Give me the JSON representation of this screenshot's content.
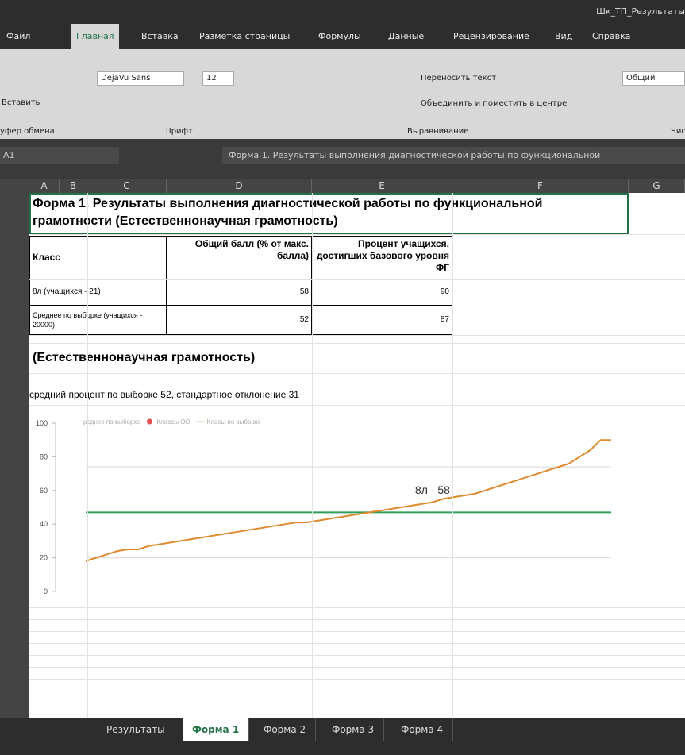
{
  "window": {
    "title": "Шк_ТП_Результаты"
  },
  "tabs": [
    "Файл",
    "Главная",
    "Вставка",
    "Разметка страницы",
    "Формулы",
    "Данные",
    "Рецензирование",
    "Вид",
    "Справка"
  ],
  "ribbon": {
    "paste": "Вставить",
    "font_name": "DejaVu Sans",
    "font_size": "12",
    "wrap_text": "Переносить текст",
    "merge": "Объединить и поместить в центре",
    "number_format": "Общий",
    "groups": [
      "уфер обмена",
      "Шрифт",
      "Выравнивание",
      "Числ"
    ]
  },
  "formula_bar": {
    "cell": "A1",
    "formula": "Форма 1. Результаты выполнения диагностической работы по функциональной"
  },
  "columns": [
    "A",
    "B",
    "C",
    "D",
    "E",
    "F",
    "G"
  ],
  "sheet": {
    "title": "Форма 1. Результаты выполнения диагностической работы по функциональной грамотности (Естественнонаучная грамотность)",
    "table": {
      "header": [
        "Класс",
        "Общий балл (% от макс. балла)",
        "Процент учащихся, достигших базового уровня ФГ"
      ],
      "rows": [
        [
          "8л (учащихся - 21)",
          58,
          90
        ],
        [
          "Среднее по выборке (учащихся - 20000)",
          52,
          87
        ]
      ]
    },
    "section": "(Естественнонаучная грамотность)",
    "stats": "средний процент по выборке 52, стандартное отклонение 31"
  },
  "chart_data": {
    "type": "line",
    "ylim": [
      0,
      100
    ],
    "yticks": [
      0,
      20,
      40,
      60,
      80,
      100
    ],
    "legend": [
      {
        "name": "реднее по выборке",
        "color": "#d0d0d0"
      },
      {
        "name": "Классы ОО",
        "color": "#e05050"
      },
      {
        "name": "Класы по выборке",
        "color": "#f0dcc0"
      }
    ],
    "series": [
      {
        "name": "Класы по выборке",
        "color": "#e08a2e",
        "values": [
          18,
          20,
          22,
          24,
          25,
          25,
          27,
          28,
          29,
          30,
          31,
          32,
          33,
          34,
          35,
          36,
          37,
          38,
          39,
          40,
          41,
          41,
          42,
          43,
          44,
          45,
          46,
          47,
          48,
          49,
          50,
          51,
          52,
          53,
          55,
          56,
          57,
          58,
          60,
          62,
          64,
          66,
          68,
          70,
          72,
          74,
          76,
          80,
          84,
          90,
          90
        ]
      }
    ],
    "reference_lines": [
      {
        "value": 47,
        "color": "#2e9e5b"
      },
      {
        "value": 74,
        "color": "#d9d9d9"
      },
      {
        "value": 20,
        "color": "#d9d9d9"
      }
    ],
    "annotations": [
      {
        "text": "8л - 58",
        "x": 33,
        "y": 58
      }
    ]
  },
  "sheet_tabs": [
    "Результаты",
    "Форма 1",
    "Форма 2",
    "Форма 3",
    "Форма 4"
  ]
}
